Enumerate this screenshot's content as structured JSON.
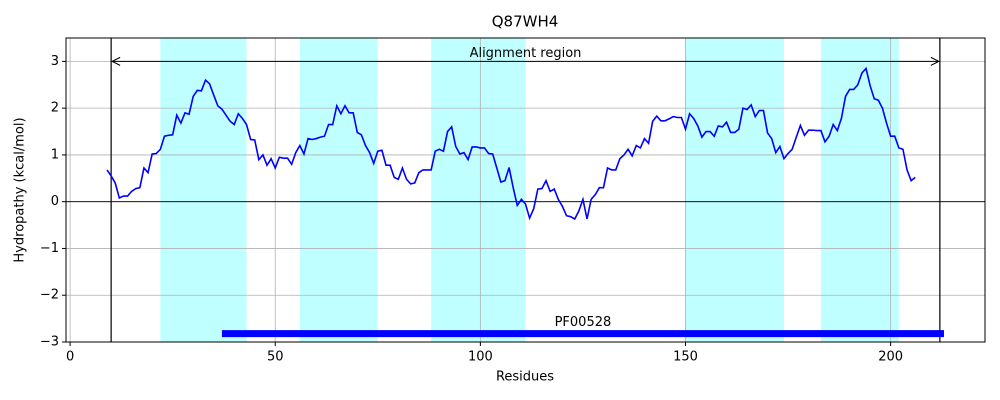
{
  "chart_data": {
    "type": "line",
    "title": "Q87WH4",
    "x_label": "Residues",
    "y_label": "Hydropathy (kcal/mol)",
    "xlim": [
      -1,
      223
    ],
    "ylim": [
      -3,
      3.5
    ],
    "xticks": [
      0,
      50,
      100,
      150,
      200
    ],
    "yticks": [
      {
        "value": -3,
        "label": "−3"
      },
      {
        "value": -2,
        "label": "−2"
      },
      {
        "value": -1,
        "label": "−1"
      },
      0,
      1,
      2,
      3
    ],
    "grid": true,
    "hline": 0,
    "regions": [
      [
        22,
        43
      ],
      [
        56,
        75
      ],
      [
        88,
        111
      ],
      [
        150,
        174
      ],
      [
        183,
        202
      ]
    ],
    "region_color": "#bfffff",
    "vlines": [
      10,
      212
    ],
    "annotation": {
      "text": "Alignment region",
      "x": [
        10,
        212
      ],
      "y": 3
    },
    "domain": {
      "label": "PF00528",
      "start": 37,
      "end": 213,
      "y": -2.82,
      "color": "#0000ff"
    },
    "series": [
      {
        "color": "#0000ff",
        "x": [
          9,
          10,
          11,
          12,
          13,
          14,
          15,
          16,
          17,
          18,
          19,
          20,
          21,
          22,
          23,
          24,
          25,
          26,
          27,
          28,
          29,
          30,
          31,
          32,
          33,
          34,
          35,
          36,
          37,
          38,
          39,
          40,
          41,
          42,
          43,
          44,
          45,
          46,
          47,
          48,
          49,
          50,
          51,
          52,
          53,
          54,
          55,
          56,
          57,
          58,
          59,
          60,
          61,
          62,
          63,
          64,
          65,
          66,
          67,
          68,
          69,
          70,
          71,
          72,
          73,
          74,
          75,
          76,
          77,
          78,
          79,
          80,
          81,
          82,
          83,
          84,
          85,
          86,
          87,
          88,
          89,
          90,
          91,
          92,
          93,
          94,
          95,
          96,
          97,
          98,
          99,
          100,
          101,
          102,
          103,
          104,
          105,
          106,
          107,
          108,
          109,
          110,
          111,
          112,
          113,
          114,
          115,
          116,
          117,
          118,
          119,
          120,
          121,
          122,
          123,
          124,
          125,
          126,
          127,
          128,
          129,
          130,
          131,
          132,
          133,
          134,
          135,
          136,
          137,
          138,
          139,
          140,
          141,
          142,
          143,
          144,
          145,
          146,
          147,
          148,
          149,
          150,
          151,
          152,
          153,
          154,
          155,
          156,
          157,
          158,
          159,
          160,
          161,
          162,
          163,
          164,
          165,
          166,
          167,
          168,
          169,
          170,
          171,
          172,
          173,
          174,
          175,
          176,
          177,
          178,
          179,
          180,
          181,
          182,
          183,
          184,
          185,
          186,
          187,
          188,
          189,
          190,
          191,
          192,
          193,
          194,
          195,
          196,
          197,
          198,
          199,
          200,
          201,
          202,
          203,
          204,
          205,
          206
        ],
        "values": [
          0.68,
          0.55,
          0.4,
          0.08,
          0.12,
          0.12,
          0.22,
          0.28,
          0.3,
          0.72,
          0.62,
          1.02,
          1.03,
          1.12,
          1.4,
          1.42,
          1.43,
          1.85,
          1.68,
          1.9,
          1.87,
          2.25,
          2.38,
          2.37,
          2.6,
          2.52,
          2.28,
          2.05,
          1.98,
          1.85,
          1.72,
          1.65,
          1.88,
          1.78,
          1.65,
          1.33,
          1.32,
          0.9,
          1.0,
          0.78,
          0.92,
          0.72,
          0.95,
          0.93,
          0.93,
          0.8,
          1.05,
          1.2,
          1.02,
          1.35,
          1.33,
          1.35,
          1.38,
          1.4,
          1.65,
          1.65,
          2.05,
          1.88,
          2.05,
          1.9,
          1.9,
          1.48,
          1.43,
          1.2,
          1.05,
          0.82,
          1.08,
          1.1,
          0.78,
          0.78,
          0.52,
          0.48,
          0.72,
          0.48,
          0.38,
          0.4,
          0.62,
          0.68,
          0.68,
          0.68,
          1.08,
          1.12,
          1.08,
          1.5,
          1.6,
          1.18,
          1.02,
          1.05,
          0.9,
          1.17,
          1.17,
          1.15,
          1.15,
          1.03,
          1.02,
          0.72,
          0.42,
          0.45,
          0.73,
          0.3,
          -0.08,
          0.05,
          -0.05,
          -0.35,
          -0.15,
          0.27,
          0.28,
          0.45,
          0.22,
          0.27,
          0.05,
          -0.1,
          -0.3,
          -0.32,
          -0.37,
          -0.2,
          0.05,
          -0.37,
          0.05,
          0.15,
          0.3,
          0.3,
          0.72,
          0.68,
          0.68,
          0.92,
          1.0,
          1.12,
          0.98,
          1.2,
          1.15,
          1.35,
          1.25,
          1.72,
          1.83,
          1.73,
          1.73,
          1.77,
          1.82,
          1.8,
          1.8,
          1.55,
          1.88,
          1.78,
          1.62,
          1.38,
          1.5,
          1.5,
          1.4,
          1.62,
          1.6,
          1.7,
          1.48,
          1.48,
          1.55,
          2.0,
          1.97,
          2.07,
          1.82,
          1.95,
          1.95,
          1.47,
          1.35,
          1.05,
          1.18,
          0.92,
          1.03,
          1.12,
          1.38,
          1.63,
          1.42,
          1.53,
          1.53,
          1.52,
          1.52,
          1.28,
          1.4,
          1.65,
          1.52,
          1.78,
          2.25,
          2.4,
          2.4,
          2.5,
          2.75,
          2.85,
          2.48,
          2.2,
          2.17,
          2.0,
          1.68,
          1.4,
          1.4,
          1.15,
          1.12,
          0.68,
          0.45,
          0.52
        ]
      }
    ]
  }
}
